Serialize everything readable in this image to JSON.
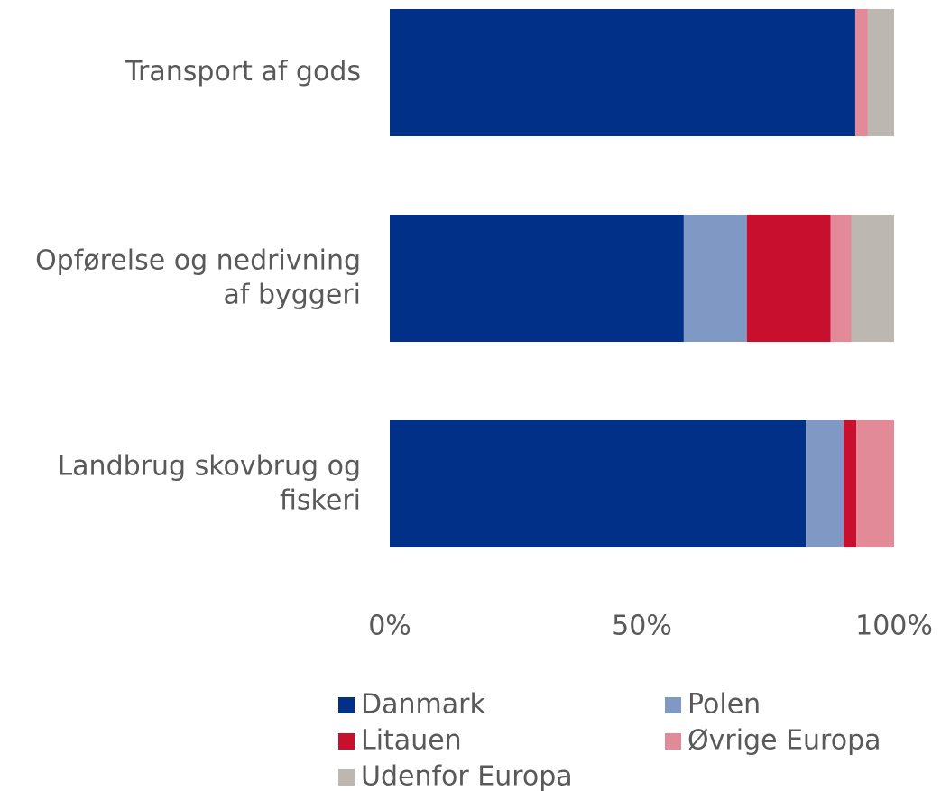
{
  "chart_data": {
    "type": "stacked_bar_horizontal",
    "categories": [
      "Transport af gods",
      "Opførelse og nedrivning\naf byggeri",
      "Landbrug skovbrug og\nfiskeri"
    ],
    "series": [
      {
        "name": "Danmark",
        "color": "#003087",
        "values": [
          92.3,
          58.3,
          82.5
        ]
      },
      {
        "name": "Polen",
        "color": "#7f99c4",
        "values": [
          0,
          12.5,
          7.5
        ]
      },
      {
        "name": "Litauen",
        "color": "#c8102e",
        "values": [
          0,
          16.6,
          2.5
        ]
      },
      {
        "name": "Øvrige Europa",
        "color": "#e38a98",
        "values": [
          2.5,
          4.1,
          7.5
        ]
      },
      {
        "name": "Udenfor Europa",
        "color": "#bcb8b1",
        "values": [
          5.2,
          8.5,
          0
        ]
      }
    ],
    "xlim": [
      0,
      100
    ],
    "xticks": [
      {
        "value": 0,
        "label": "0%"
      },
      {
        "value": 50,
        "label": "50%"
      },
      {
        "value": 100,
        "label": "100%"
      }
    ]
  }
}
